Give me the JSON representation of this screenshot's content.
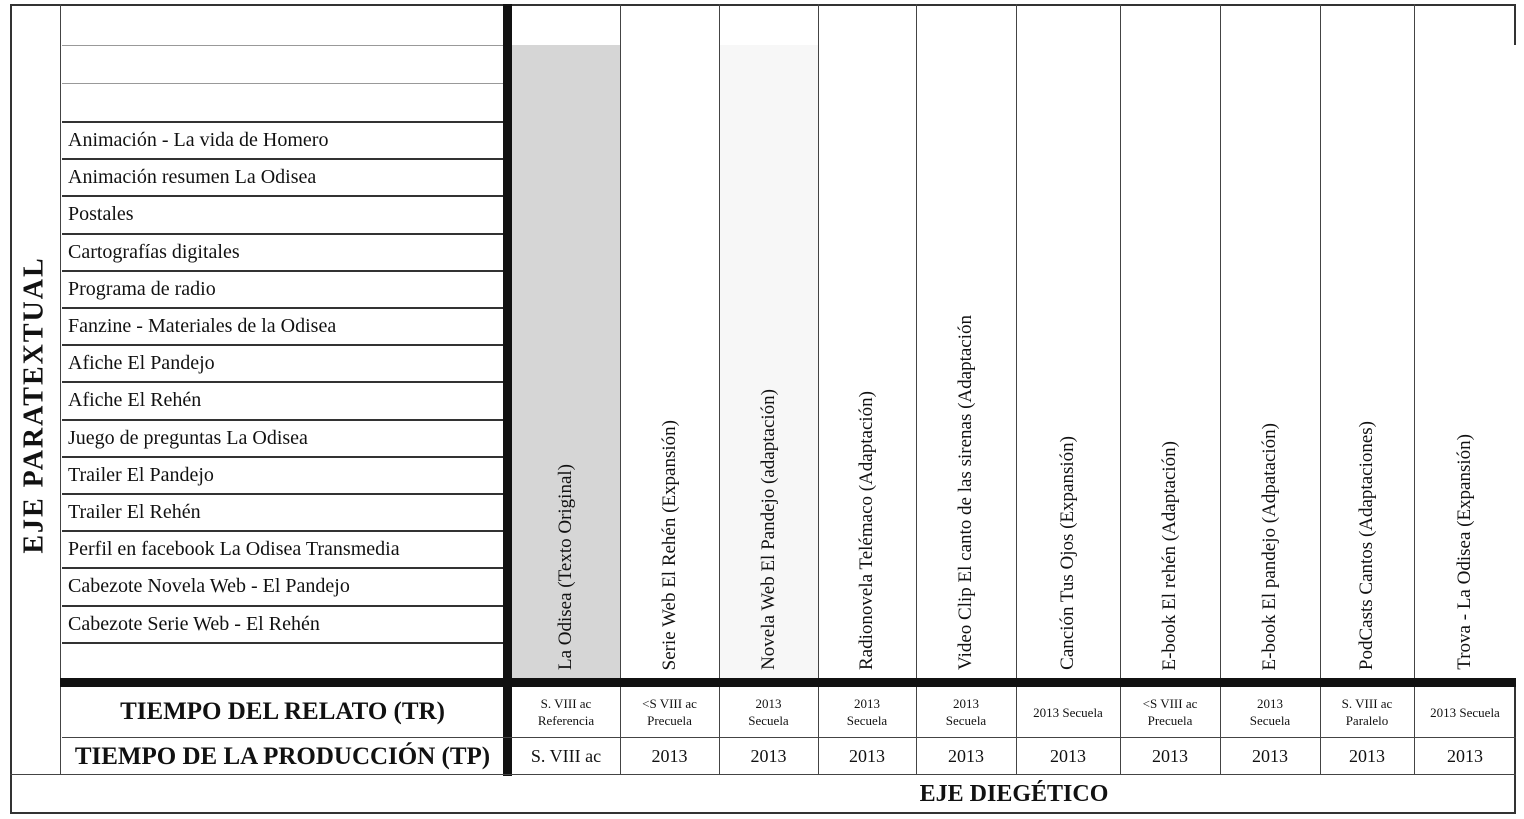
{
  "axes": {
    "paratextual": "EJE PARATEXTUAL",
    "diegetico": "EJE DIEGÉTICO",
    "tiempo_relato": "TIEMPO DEL RELATO (TR)",
    "tiempo_produccion": "TIEMPO DE LA PRODUCCIÓN (TP)"
  },
  "paratextual_items": [
    "Animación - La vida de Homero",
    "Animación resumen La Odisea",
    "Postales",
    "Cartografías digitales",
    "Programa de radio",
    "Fanzine - Materiales de la Odisea",
    "Afiche El Pandejo",
    "Afiche El Rehén",
    "Juego de preguntas La Odisea",
    "Trailer El Pandejo",
    "Trailer El Rehén",
    "Perfil en facebook La Odisea Transmedia",
    "Cabezote Novela Web - El Pandejo",
    "Cabezote Serie Web - El Rehén"
  ],
  "columns": [
    {
      "title": "La Odisea (Texto Original)",
      "tr": [
        "S. VIII ac",
        "Referencia"
      ],
      "tp": "S. VIII ac",
      "shade": "#d6d6d6"
    },
    {
      "title": "Serie Web El Rehén (Expansión)",
      "tr": [
        "<S VIII ac",
        "Precuela"
      ],
      "tp": "2013",
      "shade": "#ffffff"
    },
    {
      "title": "Novela Web El Pandejo (adaptación)",
      "tr": [
        "2013",
        "Secuela"
      ],
      "tp": "2013",
      "shade": "#f7f7f7"
    },
    {
      "title": "Radionovela Telémaco (Adaptación)",
      "tr": [
        "2013",
        "Secuela"
      ],
      "tp": "2013",
      "shade": "#ffffff"
    },
    {
      "title": "Video Clip  El canto de las sirenas (Adaptación",
      "tr": [
        "2013",
        "Secuela"
      ],
      "tp": "2013",
      "shade": "#ffffff"
    },
    {
      "title": "Canción Tus Ojos (Expansión)",
      "tr": [
        "2013 Secuela"
      ],
      "tp": "2013",
      "shade": "#ffffff"
    },
    {
      "title": "E-book El rehén (Adaptación)",
      "tr": [
        "<S VIII ac",
        "Precuela"
      ],
      "tp": "2013",
      "shade": "#ffffff"
    },
    {
      "title": "E-book El pandejo (Adpatación)",
      "tr": [
        "2013",
        "Secuela"
      ],
      "tp": "2013",
      "shade": "#ffffff"
    },
    {
      "title": "PodCasts  Cantos (Adaptaciones)",
      "tr": [
        "S. VIII ac",
        "Paralelo"
      ],
      "tp": "2013",
      "shade": "#ffffff"
    },
    {
      "title": "Trova - La Odisea (Expansión)",
      "tr": [
        "2013 Secuela"
      ],
      "tp": "2013",
      "shade": "#ffffff"
    }
  ]
}
